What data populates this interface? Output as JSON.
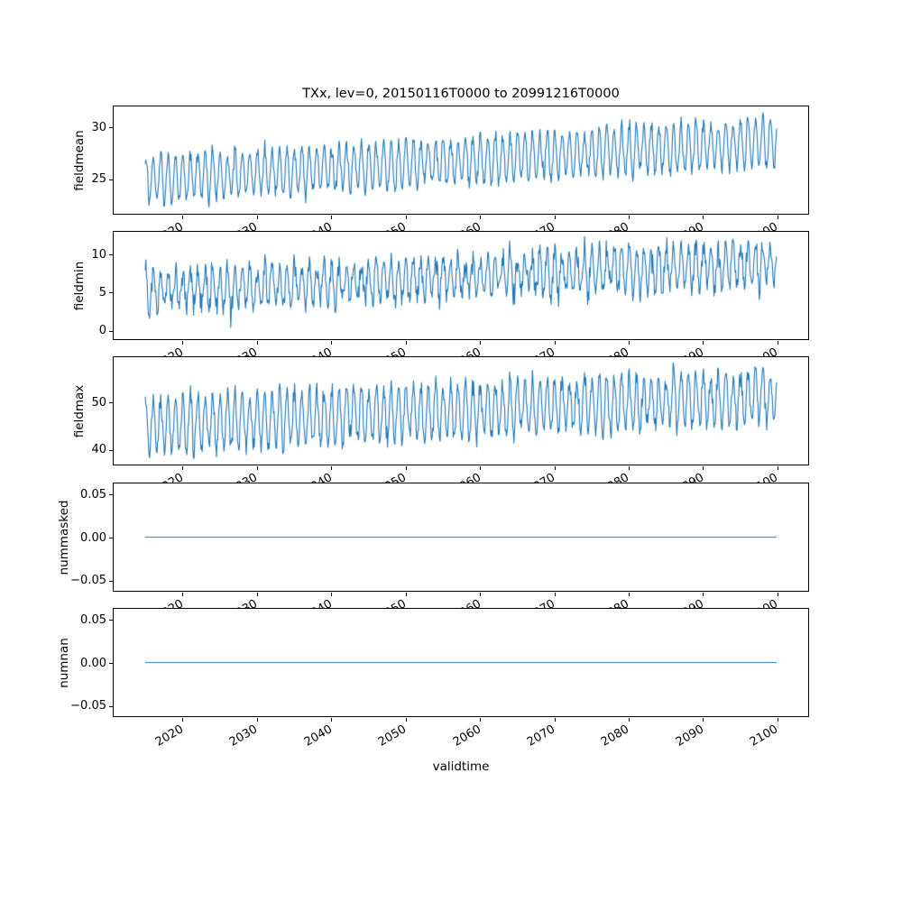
{
  "figure": {
    "title": "TXx, lev=0, 20150116T0000 to 20991216T0000",
    "xlabel": "validtime",
    "background": "#ffffff",
    "line_color": "#1f77b4"
  },
  "chart_data": [
    {
      "type": "line",
      "ylabel": "fieldmean",
      "x_start": 2015.0417,
      "x_end": 2099.9583,
      "points_per_year": 12,
      "xlim": [
        2010.7959,
        2104.2041
      ],
      "xticks": [
        2020,
        2030,
        2040,
        2050,
        2060,
        2070,
        2080,
        2090,
        2100
      ],
      "xtick_labels": [
        "2020",
        "2030",
        "2040",
        "2050",
        "2060",
        "2070",
        "2080",
        "2090",
        "2100"
      ],
      "ylim": [
        21.6,
        32.0
      ],
      "yticks": [
        25,
        30
      ],
      "ytick_labels": [
        "25",
        "30"
      ],
      "grid": false,
      "legend": false,
      "series": [
        {
          "name": "fieldmean",
          "color": "#1f77b4",
          "trend_start": 24.9,
          "trend_end": 28.6,
          "seasonal_amplitude": 2.2,
          "amplitude_jitter": 0.12,
          "noise_sigma": 0.35,
          "seed": 7,
          "approx_value_range": [
            22.0,
            31.5
          ],
          "shape": "annual oscillation with rising trend"
        }
      ]
    },
    {
      "type": "line",
      "ylabel": "fieldmin",
      "x_start": 2015.0417,
      "x_end": 2099.9583,
      "points_per_year": 12,
      "xlim": [
        2010.7959,
        2104.2041
      ],
      "xticks": [
        2020,
        2030,
        2040,
        2050,
        2060,
        2070,
        2080,
        2090,
        2100
      ],
      "xtick_labels": [
        "2020",
        "2030",
        "2040",
        "2050",
        "2060",
        "2070",
        "2080",
        "2090",
        "2100"
      ],
      "ylim": [
        -1.15,
        12.9
      ],
      "yticks": [
        0,
        5,
        10
      ],
      "ytick_labels": [
        "0",
        "5",
        "10"
      ],
      "grid": false,
      "legend": false,
      "series": [
        {
          "name": "fieldmin",
          "color": "#1f77b4",
          "trend_start": 5.2,
          "trend_end": 8.8,
          "seasonal_amplitude": 2.6,
          "amplitude_jitter": 0.18,
          "noise_sigma": 0.75,
          "seed": 13,
          "approx_value_range": [
            -0.5,
            12.3
          ],
          "shape": "annual oscillation with rising trend"
        }
      ]
    },
    {
      "type": "line",
      "ylabel": "fieldmax",
      "x_start": 2015.0417,
      "x_end": 2099.9583,
      "points_per_year": 12,
      "xlim": [
        2010.7959,
        2104.2041
      ],
      "xticks": [
        2020,
        2030,
        2040,
        2050,
        2060,
        2070,
        2080,
        2090,
        2100
      ],
      "xtick_labels": [
        "2020",
        "2030",
        "2040",
        "2050",
        "2060",
        "2070",
        "2080",
        "2090",
        "2100"
      ],
      "ylim": [
        36.8,
        59.5
      ],
      "yticks": [
        40,
        50
      ],
      "ytick_labels": [
        "40",
        "50"
      ],
      "grid": false,
      "legend": false,
      "series": [
        {
          "name": "fieldmax",
          "color": "#1f77b4",
          "trend_start": 45.2,
          "trend_end": 51.2,
          "seasonal_amplitude": 5.6,
          "amplitude_jitter": 0.15,
          "noise_sigma": 1.1,
          "seed": 21,
          "approx_value_range": [
            37.9,
            58.5
          ],
          "shape": "annual oscillation with rising trend"
        }
      ]
    },
    {
      "type": "line",
      "ylabel": "nummasked",
      "x_start": 2015.0417,
      "x_end": 2099.9583,
      "points_per_year": 12,
      "xlim": [
        2010.7959,
        2104.2041
      ],
      "xticks": [
        2020,
        2030,
        2040,
        2050,
        2060,
        2070,
        2080,
        2090,
        2100
      ],
      "xtick_labels": [
        "2020",
        "2030",
        "2040",
        "2050",
        "2060",
        "2070",
        "2080",
        "2090",
        "2100"
      ],
      "ylim": [
        -0.0625,
        0.0625
      ],
      "yticks": [
        -0.05,
        0.0,
        0.05
      ],
      "ytick_labels": [
        "−0.05",
        "0.00",
        "0.05"
      ],
      "grid": false,
      "legend": false,
      "series": [
        {
          "name": "nummasked",
          "color": "#1f77b4",
          "trend_start": 0,
          "trend_end": 0,
          "seasonal_amplitude": 0,
          "amplitude_jitter": 0,
          "noise_sigma": 0,
          "seed": 1,
          "approx_value_range": [
            0,
            0
          ],
          "shape": "constant zero"
        }
      ]
    },
    {
      "type": "line",
      "ylabel": "numnan",
      "x_start": 2015.0417,
      "x_end": 2099.9583,
      "points_per_year": 12,
      "xlim": [
        2010.7959,
        2104.2041
      ],
      "xticks": [
        2020,
        2030,
        2040,
        2050,
        2060,
        2070,
        2080,
        2090,
        2100
      ],
      "xtick_labels": [
        "2020",
        "2030",
        "2040",
        "2050",
        "2060",
        "2070",
        "2080",
        "2090",
        "2100"
      ],
      "ylim": [
        -0.0625,
        0.0625
      ],
      "yticks": [
        -0.05,
        0.0,
        0.05
      ],
      "ytick_labels": [
        "−0.05",
        "0.00",
        "0.05"
      ],
      "grid": false,
      "legend": false,
      "series": [
        {
          "name": "numnan",
          "color": "#1f77b4",
          "trend_start": 0,
          "trend_end": 0,
          "seasonal_amplitude": 0,
          "amplitude_jitter": 0,
          "noise_sigma": 0,
          "seed": 2,
          "approx_value_range": [
            0,
            0
          ],
          "shape": "constant zero"
        }
      ]
    }
  ]
}
